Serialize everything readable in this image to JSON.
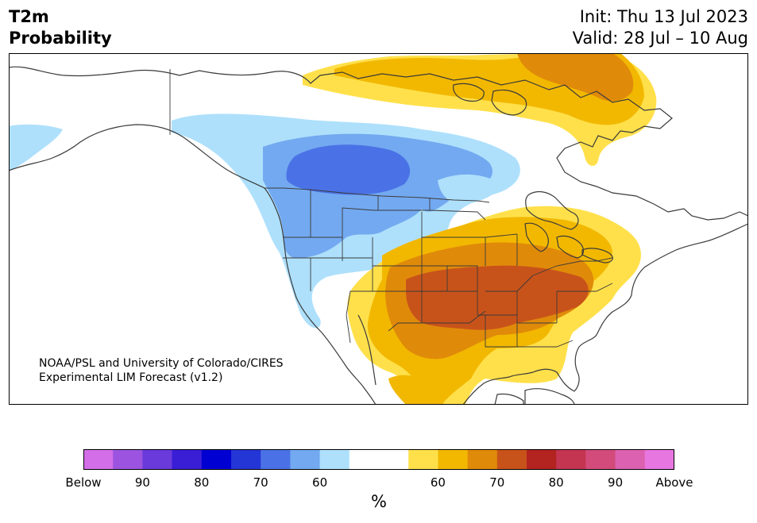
{
  "title": {
    "variable": "T2m",
    "metric": "Probability",
    "init": "Init: Thu 13 Jul 2023",
    "valid": "Valid: 28 Jul – 10 Aug"
  },
  "credit": {
    "line1": "NOAA/PSL and University of Colorado/CIRES",
    "line2": "Experimental LIM Forecast (v1.2)"
  },
  "colorbar": {
    "unit": "%",
    "colors": [
      "#d36ee8",
      "#9c54e0",
      "#6a3adb",
      "#3a1ed6",
      "#0000d2",
      "#2536d6",
      "#4a72e6",
      "#73a9f0",
      "#aee0fc",
      "#ffffff",
      "#ffffff",
      "#ffe04a",
      "#f2b800",
      "#e08a0a",
      "#c8531a",
      "#b3231f",
      "#c43552",
      "#d24b7b",
      "#dc61b0",
      "#e876e0"
    ],
    "tick_labels": [
      "Below",
      "90",
      "80",
      "70",
      "60",
      "60",
      "70",
      "80",
      "90",
      "Above"
    ]
  },
  "legend_colors": {
    "below_60": "#aee0fc",
    "below_70": "#73a9f0",
    "below_80": "#4a72e6",
    "above_60": "#ffe04a",
    "above_70": "#f2b800",
    "above_80": "#e08a0a",
    "above_90": "#c8531a"
  }
}
